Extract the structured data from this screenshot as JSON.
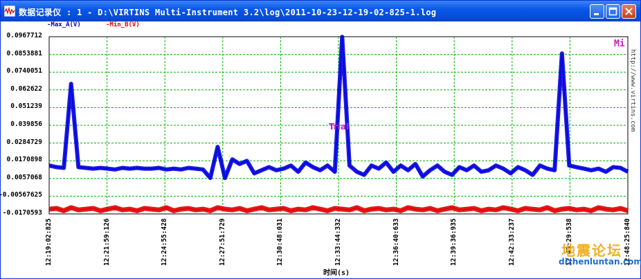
{
  "window": {
    "title": "数据记录仪 : 1 - D:\\VIRTINS Multi-Instrument 3.2\\log\\2011-10-23-12-19-02-825-1.log",
    "controls": [
      "minimize",
      "maximize",
      "close"
    ]
  },
  "legend": {
    "series_a": "-Max_A(V)",
    "series_b": "-Min_B(V)"
  },
  "annotations": {
    "mi_label": "Mi",
    "trial_label": "Trial",
    "vertical_url": "http://www.virtins.com"
  },
  "watermark": {
    "cn_text": "地震论坛",
    "url": "dizhenluntan.com"
  },
  "colors": {
    "series_a": "#0000e0",
    "series_b": "#e00000",
    "grid": "#00b000",
    "title_bar": "#0a58e6",
    "accent_magenta": "#c020c0"
  },
  "chart_data": {
    "type": "line",
    "xlabel": "时间(s)",
    "ylabel": "",
    "y_tick_labels": [
      "0.0967712",
      "0.0853881",
      "0.0740051",
      "0.062622",
      "0.051239",
      "0.039856",
      "0.0284729",
      "0.0170898",
      "0.0057068",
      "-0.00567625",
      "-0.0170593"
    ],
    "x_tick_labels": [
      "12:19:02:825",
      "12:21:59:126",
      "12:24:55:428",
      "12:27:51:729",
      "12:30:48:031",
      "12:33:44:332",
      "12:36:40:633",
      "12:39:36:935",
      "12:42:33:237",
      "12:45:29:538",
      "12:48:25:840"
    ],
    "ylim": [
      -0.0170593,
      0.0967712
    ],
    "grid": true,
    "legend_position": "top-left",
    "series": [
      {
        "name": "-Max_A(V)",
        "values": [
          0.014,
          0.013,
          0.0125,
          0.0665,
          0.013,
          0.0125,
          0.012,
          0.0125,
          0.012,
          0.0115,
          0.0125,
          0.012,
          0.0125,
          0.012,
          0.012,
          0.0125,
          0.0115,
          0.012,
          0.0115,
          0.0125,
          0.012,
          0.0115,
          0.006,
          0.026,
          0.006,
          0.018,
          0.015,
          0.017,
          0.009,
          0.011,
          0.013,
          0.011,
          0.012,
          0.014,
          0.01,
          0.016,
          0.013,
          0.011,
          0.014,
          0.01,
          0.0967,
          0.014,
          0.01,
          0.008,
          0.014,
          0.012,
          0.016,
          0.01,
          0.014,
          0.011,
          0.015,
          0.007,
          0.011,
          0.014,
          0.01,
          0.008,
          0.013,
          0.011,
          0.014,
          0.01,
          0.011,
          0.014,
          0.012,
          0.009,
          0.013,
          0.011,
          0.008,
          0.014,
          0.012,
          0.011,
          0.086,
          0.014,
          0.013,
          0.012,
          0.011,
          0.012,
          0.01,
          0.013,
          0.0125,
          0.01
        ]
      },
      {
        "name": "-Min_B(V)",
        "values": [
          -0.014,
          -0.0135,
          -0.015,
          -0.013,
          -0.0145,
          -0.014,
          -0.0135,
          -0.015,
          -0.014,
          -0.013,
          -0.0145,
          -0.014,
          -0.015,
          -0.0135,
          -0.014,
          -0.0145,
          -0.013,
          -0.015,
          -0.014,
          -0.0135,
          -0.0145,
          -0.014,
          -0.015,
          -0.013,
          -0.014,
          -0.0145,
          -0.0135,
          -0.015,
          -0.014,
          -0.013,
          -0.0145,
          -0.014,
          -0.0135,
          -0.015,
          -0.014,
          -0.0145,
          -0.013,
          -0.014,
          -0.015,
          -0.0135,
          -0.014,
          -0.0145,
          -0.013,
          -0.015,
          -0.014,
          -0.0135,
          -0.0145,
          -0.014,
          -0.015,
          -0.013,
          -0.014,
          -0.0145,
          -0.0135,
          -0.015,
          -0.014,
          -0.013,
          -0.0145,
          -0.014,
          -0.0135,
          -0.015,
          -0.014,
          -0.0145,
          -0.013,
          -0.014,
          -0.015,
          -0.0135,
          -0.014,
          -0.0145,
          -0.013,
          -0.015,
          -0.014,
          -0.0135,
          -0.0145,
          -0.014,
          -0.015,
          -0.013,
          -0.014,
          -0.0145,
          -0.0135,
          -0.015
        ]
      }
    ]
  }
}
